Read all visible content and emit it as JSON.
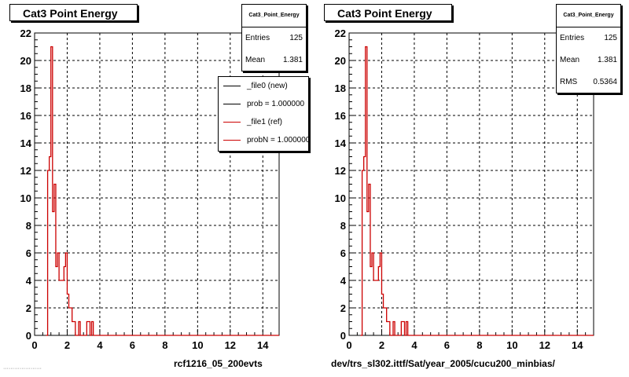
{
  "panels": [
    {
      "title": "Cat3 Point Energy",
      "stats": {
        "name": "Cat3_Point_Energy",
        "rows": [
          {
            "label": "Entries",
            "value": "125"
          },
          {
            "label": "Mean",
            "value": "1.381"
          }
        ]
      },
      "legend": [
        {
          "label": "_file0 (new)",
          "color": "#000000"
        },
        {
          "label": "prob = 1.000000",
          "color": "#000000"
        },
        {
          "label": "_file1 (ref)",
          "color": "#cc0000"
        },
        {
          "label": "probN = 1.000000",
          "color": "#cc0000"
        }
      ],
      "caption": "rcf1216_05_200evts"
    },
    {
      "title": "Cat3 Point Energy",
      "stats": {
        "name": "Cat3_Point_Energy",
        "rows": [
          {
            "label": "Entries",
            "value": "125"
          },
          {
            "label": "Mean",
            "value": "1.381"
          },
          {
            "label": "RMS",
            "value": "0.5364"
          }
        ]
      },
      "caption": "dev/trs_sl302.ittf/Sat/year_2005/cucu200_minbias/"
    }
  ],
  "chart_data": [
    {
      "type": "histogram",
      "title": "Cat3 Point Energy",
      "xlim": [
        0,
        15
      ],
      "ylim": [
        0,
        22
      ],
      "x_ticks": [
        0,
        2,
        4,
        6,
        8,
        10,
        12,
        14
      ],
      "y_ticks": [
        0,
        2,
        4,
        6,
        8,
        10,
        12,
        14,
        16,
        18,
        20,
        22
      ],
      "grid": true,
      "bin_width": 0.1,
      "bin_start": 0.8,
      "series": [
        {
          "name": "_file1 (ref)",
          "color": "#cc0000",
          "values": [
            12,
            13,
            21,
            9,
            11,
            5,
            6,
            4,
            4,
            4,
            5,
            6,
            3,
            2,
            2,
            1,
            1,
            0,
            0,
            1,
            0,
            0,
            0,
            0,
            1,
            1,
            0,
            1
          ]
        }
      ]
    },
    {
      "type": "histogram",
      "title": "Cat3 Point Energy",
      "xlim": [
        0,
        15
      ],
      "ylim": [
        0,
        22
      ],
      "x_ticks": [
        0,
        2,
        4,
        6,
        8,
        10,
        12,
        14
      ],
      "y_ticks": [
        0,
        2,
        4,
        6,
        8,
        10,
        12,
        14,
        16,
        18,
        20,
        22
      ],
      "grid": true,
      "bin_width": 0.1,
      "bin_start": 0.8,
      "series": [
        {
          "name": "",
          "color": "#cc0000",
          "values": [
            12,
            13,
            21,
            9,
            11,
            5,
            6,
            4,
            4,
            4,
            5,
            6,
            3,
            2,
            2,
            1,
            1,
            0,
            0,
            1,
            0,
            0,
            0,
            0,
            1,
            1,
            0,
            1
          ]
        }
      ]
    }
  ]
}
